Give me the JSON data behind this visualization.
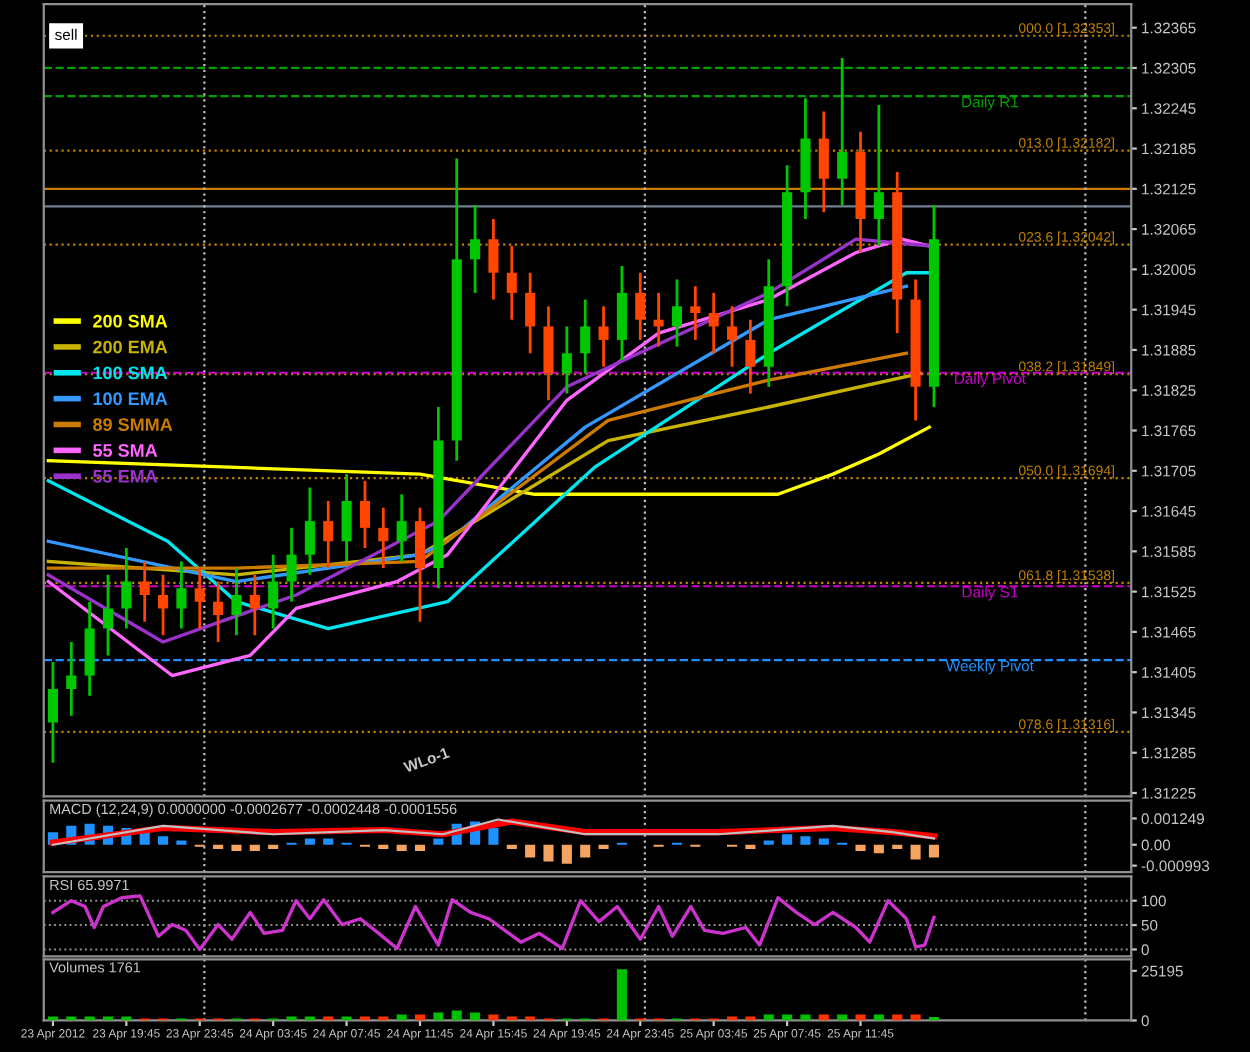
{
  "chart_data": [
    {
      "type": "candlestick",
      "x": [
        "2012-04-23T15:45",
        "2012-04-23T16:45",
        "2012-04-23T17:45",
        "2012-04-23T18:45",
        "2012-04-23T19:45",
        "2012-04-23T20:45",
        "2012-04-23T21:45",
        "2012-04-23T22:45",
        "2012-04-23T23:45",
        "2012-04-24T00:45",
        "2012-04-24T01:45",
        "2012-04-24T02:45",
        "2012-04-24T03:45",
        "2012-04-24T04:45",
        "2012-04-24T05:45",
        "2012-04-24T06:45",
        "2012-04-24T07:45",
        "2012-04-24T08:45",
        "2012-04-24T09:45",
        "2012-04-24T10:45",
        "2012-04-24T11:45",
        "2012-04-24T12:45",
        "2012-04-24T13:45",
        "2012-04-24T14:45",
        "2012-04-24T15:45",
        "2012-04-24T16:45",
        "2012-04-24T17:45",
        "2012-04-24T18:45",
        "2012-04-24T19:45",
        "2012-04-24T20:45",
        "2012-04-24T21:45",
        "2012-04-24T22:45",
        "2012-04-24T23:45",
        "2012-04-25T00:45",
        "2012-04-25T01:45",
        "2012-04-25T02:45",
        "2012-04-25T03:45",
        "2012-04-25T04:45",
        "2012-04-25T05:45",
        "2012-04-25T06:45",
        "2012-04-25T07:45",
        "2012-04-25T08:45",
        "2012-04-25T09:45",
        "2012-04-25T10:45",
        "2012-04-25T11:45",
        "2012-04-25T12:45",
        "2012-04-25T13:45",
        "2012-04-25T14:45",
        "2012-04-25T15:45"
      ],
      "ohlc": [
        [
          1.3133,
          1.3142,
          1.3127,
          1.3138
        ],
        [
          1.3138,
          1.3145,
          1.3134,
          1.314
        ],
        [
          1.314,
          1.3151,
          1.3137,
          1.3147
        ],
        [
          1.3147,
          1.3155,
          1.3143,
          1.315
        ],
        [
          1.315,
          1.3159,
          1.3147,
          1.3154
        ],
        [
          1.3154,
          1.3157,
          1.3148,
          1.3152
        ],
        [
          1.3152,
          1.3155,
          1.3146,
          1.315
        ],
        [
          1.315,
          1.3157,
          1.3147,
          1.3153
        ],
        [
          1.3153,
          1.3156,
          1.3147,
          1.3151
        ],
        [
          1.3151,
          1.3154,
          1.3145,
          1.3149
        ],
        [
          1.3149,
          1.3156,
          1.3146,
          1.3152
        ],
        [
          1.3152,
          1.3155,
          1.3146,
          1.315
        ],
        [
          1.315,
          1.3158,
          1.3147,
          1.3154
        ],
        [
          1.3154,
          1.3162,
          1.3151,
          1.3158
        ],
        [
          1.3158,
          1.3168,
          1.3155,
          1.3163
        ],
        [
          1.3163,
          1.3166,
          1.3156,
          1.316
        ],
        [
          1.316,
          1.317,
          1.3157,
          1.3166
        ],
        [
          1.3166,
          1.3169,
          1.3159,
          1.3162
        ],
        [
          1.3162,
          1.3165,
          1.3156,
          1.316
        ],
        [
          1.316,
          1.3167,
          1.3157,
          1.3163
        ],
        [
          1.3163,
          1.3165,
          1.3148,
          1.3156
        ],
        [
          1.3156,
          1.318,
          1.3153,
          1.3175
        ],
        [
          1.3175,
          1.3217,
          1.3172,
          1.3202
        ],
        [
          1.3202,
          1.321,
          1.3197,
          1.3205
        ],
        [
          1.3205,
          1.3208,
          1.3196,
          1.32
        ],
        [
          1.32,
          1.3204,
          1.3193,
          1.3197
        ],
        [
          1.3197,
          1.32,
          1.3188,
          1.3192
        ],
        [
          1.3192,
          1.3195,
          1.3181,
          1.3185
        ],
        [
          1.3185,
          1.3192,
          1.3182,
          1.3188
        ],
        [
          1.3188,
          1.3196,
          1.3185,
          1.3192
        ],
        [
          1.3192,
          1.3195,
          1.3186,
          1.319
        ],
        [
          1.319,
          1.3201,
          1.3187,
          1.3197
        ],
        [
          1.3197,
          1.32,
          1.319,
          1.3193
        ],
        [
          1.3193,
          1.3197,
          1.3189,
          1.3192
        ],
        [
          1.3192,
          1.3199,
          1.3189,
          1.3195
        ],
        [
          1.3195,
          1.3198,
          1.319,
          1.3194
        ],
        [
          1.3194,
          1.3197,
          1.3188,
          1.3192
        ],
        [
          1.3192,
          1.3195,
          1.3186,
          1.319
        ],
        [
          1.319,
          1.3193,
          1.3182,
          1.3186
        ],
        [
          1.3186,
          1.3202,
          1.3183,
          1.3198
        ],
        [
          1.3198,
          1.3216,
          1.3195,
          1.3212
        ],
        [
          1.3212,
          1.3226,
          1.3208,
          1.322
        ],
        [
          1.322,
          1.3224,
          1.3209,
          1.3214
        ],
        [
          1.3214,
          1.3232,
          1.321,
          1.3218
        ],
        [
          1.3218,
          1.3221,
          1.3203,
          1.3208
        ],
        [
          1.3208,
          1.3225,
          1.3204,
          1.3212
        ],
        [
          1.3212,
          1.3215,
          1.3191,
          1.3196
        ],
        [
          1.3196,
          1.3199,
          1.3178,
          1.3183
        ],
        [
          1.3183,
          1.321,
          1.318,
          1.3205
        ]
      ],
      "series": [
        {
          "type": "line",
          "name": "200 SMA",
          "color": "#ffff00",
          "x": [
            "2012-04-23T15:30",
            "2012-04-24T01:45",
            "2012-04-24T11:45",
            "2012-04-24T18:00",
            "2012-04-25T01:00",
            "2012-04-25T07:15",
            "2012-04-25T10:15",
            "2012-04-25T12:45",
            "2012-04-25T15:30"
          ],
          "values": [
            1.3172,
            1.3171,
            1.317,
            1.3167,
            1.3167,
            1.3167,
            1.317,
            1.3173,
            1.3177
          ]
        },
        {
          "type": "line",
          "name": "200 EMA",
          "color": "#c8b400",
          "x": [
            "2012-04-23T15:30",
            "2012-04-24T01:45",
            "2012-04-24T11:45",
            "2012-04-24T22:00",
            "2012-04-25T06:45",
            "2012-04-25T15:00"
          ],
          "values": [
            1.3157,
            1.3155,
            1.3158,
            1.3175,
            1.318,
            1.3185
          ]
        },
        {
          "type": "line",
          "name": "100 SMA",
          "color": "#00e5ee",
          "x": [
            "2012-04-23T15:30",
            "2012-04-23T22:00",
            "2012-04-24T01:45",
            "2012-04-24T06:45",
            "2012-04-24T13:15",
            "2012-04-24T21:15",
            "2012-04-25T06:45",
            "2012-04-25T14:15",
            "2012-04-25T15:30"
          ],
          "values": [
            1.3169,
            1.316,
            1.3151,
            1.3147,
            1.3151,
            1.3171,
            1.3188,
            1.32,
            1.32
          ]
        },
        {
          "type": "line",
          "name": "100 EMA",
          "color": "#3399ff",
          "x": [
            "2012-04-23T15:30",
            "2012-04-24T01:45",
            "2012-04-24T11:45",
            "2012-04-24T13:15",
            "2012-04-24T20:45",
            "2012-04-25T06:45",
            "2012-04-25T14:15"
          ],
          "values": [
            1.316,
            1.3154,
            1.3158,
            1.316,
            1.3177,
            1.3193,
            1.3198
          ]
        },
        {
          "type": "line",
          "name": "89 SMMA",
          "color": "#cc7a00",
          "x": [
            "2012-04-23T15:30",
            "2012-04-24T01:45",
            "2012-04-24T11:45",
            "2012-04-24T22:00",
            "2012-04-25T06:45",
            "2012-04-25T14:15"
          ],
          "values": [
            1.3156,
            1.3156,
            1.3157,
            1.3178,
            1.3184,
            1.3188
          ]
        },
        {
          "type": "line",
          "name": "55 SMA",
          "color": "#ff66ff",
          "x": [
            "2012-04-23T15:30",
            "2012-04-23T22:15",
            "2012-04-24T02:30",
            "2012-04-24T05:00",
            "2012-04-24T10:30",
            "2012-04-24T13:15",
            "2012-04-24T19:45",
            "2012-04-25T00:45",
            "2012-04-25T06:45",
            "2012-04-25T11:30",
            "2012-04-25T14:00",
            "2012-04-25T15:30"
          ],
          "values": [
            1.3154,
            1.314,
            1.3143,
            1.315,
            1.3154,
            1.3158,
            1.3181,
            1.3191,
            1.3196,
            1.3203,
            1.3205,
            1.3204
          ]
        },
        {
          "type": "line",
          "name": "55 EMA",
          "color": "#9933cc",
          "x": [
            "2012-04-23T15:30",
            "2012-04-23T21:45",
            "2012-04-24T05:00",
            "2012-04-24T12:45",
            "2012-04-24T19:45",
            "2012-04-25T06:45",
            "2012-04-25T11:30",
            "2012-04-25T15:30"
          ],
          "values": [
            1.3155,
            1.3145,
            1.3152,
            1.3163,
            1.3183,
            1.3197,
            1.3205,
            1.3204
          ]
        }
      ],
      "ref_lines": [
        {
          "axis": "y",
          "value": 1.32353,
          "label": "000.0 [1.32353]",
          "color": "#c08000",
          "line_style": "dotted"
        },
        {
          "axis": "y",
          "value": 1.32182,
          "label": "013.0 [1.32182]",
          "color": "#c08000",
          "line_style": "dotted"
        },
        {
          "axis": "y",
          "value": 1.32042,
          "label": "023.6 [1.32042]",
          "color": "#c08000",
          "line_style": "dotted"
        },
        {
          "axis": "y",
          "value": 1.31849,
          "label": "038.2 [1.31849]",
          "color": "#c08000",
          "line_style": "dotted"
        },
        {
          "axis": "y",
          "value": 1.31694,
          "label": "050.0 [1.31694]",
          "color": "#c08000",
          "line_style": "dotted"
        },
        {
          "axis": "y",
          "value": 1.31538,
          "label": "061.8 [1.31538]",
          "color": "#c08000",
          "line_style": "dotted"
        },
        {
          "axis": "y",
          "value": 1.31316,
          "label": "078.6 [1.31316]",
          "color": "#c08000",
          "line_style": "dotted"
        },
        {
          "axis": "y",
          "value": 1.32305,
          "color": "#00a000",
          "line_style": "dashed"
        },
        {
          "axis": "y",
          "value": 1.32263,
          "label": "Daily R1",
          "color": "#00a000",
          "line_style": "dashed"
        },
        {
          "axis": "y",
          "value": 1.32125,
          "color": "#cc7a00",
          "line_style": "solid"
        },
        {
          "axis": "y",
          "value": 1.32099,
          "color": "#708090",
          "line_style": "solid"
        },
        {
          "axis": "y",
          "value": 1.31851,
          "label": "Daily Pivot",
          "color": "#cc00cc",
          "line_style": "dashed"
        },
        {
          "axis": "y",
          "value": 1.31533,
          "label": "Daily S1",
          "color": "#cc00cc",
          "line_style": "dashed"
        },
        {
          "axis": "y",
          "value": 1.31423,
          "label": "Weekly Pivot",
          "color": "#1e90ff",
          "line_style": "dashed"
        },
        {
          "axis": "x",
          "value": "2012-04-24",
          "color": "#c0c0c0",
          "line_style": "dotted"
        },
        {
          "axis": "x",
          "value": "2012-04-25",
          "color": "#c0c0c0",
          "line_style": "dotted"
        },
        {
          "axis": "x",
          "value": "2012-04-26",
          "color": "#c0c0c0",
          "line_style": "dotted"
        }
      ],
      "annotations": [
        "sell",
        "WLo-1"
      ],
      "legend": "center left",
      "xlim": [
        "2012-04-23T15:15",
        "2012-04-26T02:30"
      ],
      "ylim": [
        1.3122,
        1.324
      ],
      "yticks": [
        1.32365,
        1.32305,
        1.32245,
        1.32185,
        1.32125,
        1.32065,
        1.32005,
        1.31945,
        1.31885,
        1.31825,
        1.31765,
        1.31705,
        1.31645,
        1.31585,
        1.31525,
        1.31465,
        1.31405,
        1.31345,
        1.31285,
        1.31225
      ],
      "tick_labels": "y"
    },
    {
      "type": "bar",
      "title": "MACD (12,24,9) 0.0000000 -0.0002677 -0.0002448 -0.0001556",
      "x": [
        "2012-04-23T15:45",
        "2012-04-23T16:45",
        "2012-04-23T17:45",
        "2012-04-23T18:45",
        "2012-04-23T19:45",
        "2012-04-23T20:45",
        "2012-04-23T21:45",
        "2012-04-23T22:45",
        "2012-04-23T23:45",
        "2012-04-24T00:45",
        "2012-04-24T01:45",
        "2012-04-24T02:45",
        "2012-04-24T03:45",
        "2012-04-24T04:45",
        "2012-04-24T05:45",
        "2012-04-24T06:45",
        "2012-04-24T07:45",
        "2012-04-24T08:45",
        "2012-04-24T09:45",
        "2012-04-24T10:45",
        "2012-04-24T11:45",
        "2012-04-24T12:45",
        "2012-04-24T13:45",
        "2012-04-24T14:45",
        "2012-04-24T15:45",
        "2012-04-24T16:45",
        "2012-04-24T17:45",
        "2012-04-24T18:45",
        "2012-04-24T19:45",
        "2012-04-24T20:45",
        "2012-04-24T21:45",
        "2012-04-24T22:45",
        "2012-04-24T23:45",
        "2012-04-25T00:45",
        "2012-04-25T01:45",
        "2012-04-25T02:45",
        "2012-04-25T03:45",
        "2012-04-25T04:45",
        "2012-04-25T05:45",
        "2012-04-25T06:45",
        "2012-04-25T07:45",
        "2012-04-25T08:45",
        "2012-04-25T09:45",
        "2012-04-25T10:45",
        "2012-04-25T11:45",
        "2012-04-25T12:45",
        "2012-04-25T13:45",
        "2012-04-25T14:45",
        "2012-04-25T15:45"
      ],
      "series": [
        {
          "type": "bar",
          "values": [
            0.0006,
            0.0009,
            0.001,
            0.0009,
            0.0008,
            0.0006,
            0.0004,
            0.0002,
            -0.0001,
            -0.0002,
            -0.0003,
            -0.0003,
            -0.0002,
            0.0001,
            0.0003,
            0.0003,
            0.0001,
            -0.0001,
            -0.0002,
            -0.0003,
            -0.0003,
            0.0003,
            0.001,
            0.0011,
            0.0008,
            -0.0002,
            -0.0006,
            -0.0008,
            -0.0009,
            -0.0006,
            -0.0002,
            0.0001,
            0.0,
            -0.0001,
            0.0001,
            -0.0001,
            0.0,
            -0.0001,
            -0.0002,
            0.0002,
            0.0005,
            0.0004,
            0.0003,
            0.0001,
            -0.0003,
            -0.0004,
            -0.0002,
            -0.0007,
            -0.0006
          ],
          "colors": [
            "#1e90ff",
            "#1e90ff",
            "#1e90ff",
            "#1e90ff",
            "#1e90ff",
            "#1e90ff",
            "#1e90ff",
            "#1e90ff",
            "#f4a460",
            "#f4a460",
            "#f4a460",
            "#f4a460",
            "#f4a460",
            "#1e90ff",
            "#1e90ff",
            "#1e90ff",
            "#1e90ff",
            "#f4a460",
            "#f4a460",
            "#f4a460",
            "#f4a460",
            "#1e90ff",
            "#1e90ff",
            "#1e90ff",
            "#1e90ff",
            "#f4a460",
            "#f4a460",
            "#f4a460",
            "#f4a460",
            "#f4a460",
            "#f4a460",
            "#1e90ff",
            "#1e90ff",
            "#f4a460",
            "#1e90ff",
            "#f4a460",
            "#1e90ff",
            "#f4a460",
            "#f4a460",
            "#1e90ff",
            "#1e90ff",
            "#1e90ff",
            "#1e90ff",
            "#1e90ff",
            "#f4a460",
            "#f4a460",
            "#f4a460",
            "#f4a460",
            "#f4a460"
          ]
        },
        {
          "type": "line",
          "color": "#c0c0c0",
          "x": [
            "2012-04-23T15:45",
            "2012-04-23T21:45",
            "2012-04-24T03:45",
            "2012-04-24T09:45",
            "2012-04-24T13:00",
            "2012-04-24T16:00",
            "2012-04-24T20:45",
            "2012-04-25T04:00",
            "2012-04-25T10:15",
            "2012-04-25T13:30",
            "2012-04-25T15:45"
          ],
          "values": [
            0.0,
            0.0009,
            0.0005,
            0.0007,
            0.0005,
            0.0012,
            0.0005,
            0.0005,
            0.0009,
            0.0006,
            0.0003
          ]
        },
        {
          "type": "line",
          "color": "#ff0000",
          "x": [
            "2012-04-23T15:45",
            "2012-04-23T21:45",
            "2012-04-24T03:45",
            "2012-04-24T09:45",
            "2012-04-24T13:00",
            "2012-04-24T16:45",
            "2012-04-24T20:45",
            "2012-04-25T04:00",
            "2012-04-25T10:15",
            "2012-04-25T13:30",
            "2012-04-25T15:45"
          ],
          "values": [
            0.0001,
            0.0008,
            0.0006,
            0.0007,
            0.0005,
            0.0011,
            0.0006,
            0.0006,
            0.0008,
            0.0006,
            0.0004
          ]
        }
      ],
      "ref_lines": [
        {
          "axis": "x",
          "value": "2012-04-24",
          "color": "#c0c0c0",
          "line_style": "dotted"
        },
        {
          "axis": "x",
          "value": "2012-04-25",
          "color": "#c0c0c0",
          "line_style": "dotted"
        },
        {
          "axis": "x",
          "value": "2012-04-26",
          "color": "#c0c0c0",
          "line_style": "dotted"
        }
      ],
      "xlim": [
        "2012-04-23T15:15",
        "2012-04-26T02:30"
      ],
      "ylim": [
        -0.0013,
        0.0021
      ],
      "yticks": [
        {
          "value": 0.001249,
          "label": "0.001249"
        },
        {
          "value": 0,
          "label": "0.00"
        },
        {
          "value": -0.000993,
          "label": "-0.000993"
        }
      ],
      "tick_labels": "y"
    },
    {
      "type": "line",
      "title": "RSI 65.9971",
      "series": [
        {
          "color": "#cc33cc",
          "x": [
            "2012-04-23T15:45",
            "2012-04-23T16:45",
            "2012-04-23T17:30",
            "2012-04-23T18:00",
            "2012-04-23T18:30",
            "2012-04-23T19:30",
            "2012-04-23T20:30",
            "2012-04-23T21:30",
            "2012-04-23T22:15",
            "2012-04-23T23:00",
            "2012-04-23T23:45",
            "2012-04-24T00:45",
            "2012-04-24T01:30",
            "2012-04-24T02:30",
            "2012-04-24T03:15",
            "2012-04-24T04:15",
            "2012-04-24T05:00",
            "2012-04-24T05:45",
            "2012-04-24T06:30",
            "2012-04-24T07:30",
            "2012-04-24T08:30",
            "2012-04-24T09:30",
            "2012-04-24T10:30",
            "2012-04-24T11:30",
            "2012-04-24T12:45",
            "2012-04-24T13:30",
            "2012-04-24T14:30",
            "2012-04-24T15:30",
            "2012-04-24T17:15",
            "2012-04-24T18:15",
            "2012-04-24T19:30",
            "2012-04-24T20:30",
            "2012-04-24T21:30",
            "2012-04-24T22:30",
            "2012-04-24T23:45",
            "2012-04-25T00:45",
            "2012-04-25T01:30",
            "2012-04-25T02:30",
            "2012-04-25T03:15",
            "2012-04-25T04:15",
            "2012-04-25T05:30",
            "2012-04-25T06:15",
            "2012-04-25T07:15",
            "2012-04-25T08:15",
            "2012-04-25T09:15",
            "2012-04-25T10:15",
            "2012-04-25T11:30",
            "2012-04-25T12:15",
            "2012-04-25T13:15",
            "2012-04-25T14:15",
            "2012-04-25T14:45",
            "2012-04-25T15:15",
            "2012-04-25T15:45"
          ],
          "values": [
            76,
            100,
            88,
            45,
            88,
            106,
            110,
            27,
            51,
            39,
            0,
            51,
            21,
            76,
            33,
            39,
            100,
            63,
            102,
            51,
            63,
            33,
            2,
            88,
            9,
            102,
            76,
            63,
            15,
            33,
            2,
            100,
            57,
            88,
            21,
            88,
            27,
            88,
            39,
            33,
            45,
            9,
            106,
            76,
            51,
            76,
            45,
            15,
            100,
            63,
            5,
            9,
            66
          ]
        }
      ],
      "ref_lines": [
        {
          "axis": "x",
          "value": "2012-04-24",
          "color": "#c0c0c0",
          "line_style": "dotted"
        },
        {
          "axis": "x",
          "value": "2012-04-25",
          "color": "#c0c0c0",
          "line_style": "dotted"
        },
        {
          "axis": "x",
          "value": "2012-04-26",
          "color": "#c0c0c0",
          "line_style": "dotted"
        }
      ],
      "xlim": [
        "2012-04-23T15:15",
        "2012-04-26T02:30"
      ],
      "ylim": [
        -14,
        150
      ],
      "yticks": [
        100,
        50,
        0
      ],
      "grid": "y",
      "tick_labels": "y"
    },
    {
      "type": "bar",
      "title": "Volumes 1761",
      "x": [
        "2012-04-23T15:45",
        "2012-04-23T16:45",
        "2012-04-23T17:45",
        "2012-04-23T18:45",
        "2012-04-23T19:45",
        "2012-04-23T20:45",
        "2012-04-23T21:45",
        "2012-04-23T22:45",
        "2012-04-23T23:45",
        "2012-04-24T00:45",
        "2012-04-24T01:45",
        "2012-04-24T02:45",
        "2012-04-24T03:45",
        "2012-04-24T04:45",
        "2012-04-24T05:45",
        "2012-04-24T06:45",
        "2012-04-24T07:45",
        "2012-04-24T08:45",
        "2012-04-24T09:45",
        "2012-04-24T10:45",
        "2012-04-24T11:45",
        "2012-04-24T12:45",
        "2012-04-24T13:45",
        "2012-04-24T14:45",
        "2012-04-24T15:45",
        "2012-04-24T16:45",
        "2012-04-24T17:45",
        "2012-04-24T18:45",
        "2012-04-24T19:45",
        "2012-04-24T20:45",
        "2012-04-24T21:45",
        "2012-04-24T22:45",
        "2012-04-24T23:45",
        "2012-04-25T00:45",
        "2012-04-25T01:45",
        "2012-04-25T02:45",
        "2012-04-25T03:45",
        "2012-04-25T04:45",
        "2012-04-25T05:45",
        "2012-04-25T06:45",
        "2012-04-25T07:45",
        "2012-04-25T08:45",
        "2012-04-25T09:45",
        "2012-04-25T10:45",
        "2012-04-25T11:45",
        "2012-04-25T12:45",
        "2012-04-25T13:45",
        "2012-04-25T14:45",
        "2012-04-25T15:45"
      ],
      "values": [
        2000,
        2000,
        2000,
        2000,
        2000,
        1000,
        1000,
        1000,
        1000,
        1000,
        1000,
        1000,
        1000,
        2000,
        2000,
        2000,
        2000,
        2000,
        2000,
        3000,
        3000,
        4000,
        5000,
        4000,
        3000,
        2000,
        2000,
        1000,
        1000,
        1000,
        1000,
        26000,
        1000,
        1000,
        1000,
        1000,
        1000,
        2000,
        2000,
        3000,
        3000,
        3000,
        3000,
        3000,
        3000,
        3000,
        3000,
        3000,
        1761
      ],
      "colors": [
        "#00c000",
        "#00c000",
        "#00c000",
        "#00c000",
        "#00c000",
        "#ff3300",
        "#ff3300",
        "#00c000",
        "#ff3300",
        "#ff3300",
        "#00c000",
        "#ff3300",
        "#00c000",
        "#00c000",
        "#00c000",
        "#ff3300",
        "#00c000",
        "#ff3300",
        "#ff3300",
        "#00c000",
        "#ff3300",
        "#00c000",
        "#00c000",
        "#00c000",
        "#ff3300",
        "#ff3300",
        "#ff3300",
        "#ff3300",
        "#00c000",
        "#00c000",
        "#ff3300",
        "#00c000",
        "#ff3300",
        "#ff3300",
        "#00c000",
        "#ff3300",
        "#ff3300",
        "#ff3300",
        "#ff3300",
        "#00c000",
        "#00c000",
        "#00c000",
        "#ff3300",
        "#00c000",
        "#ff3300",
        "#00c000",
        "#ff3300",
        "#ff3300",
        "#00c000"
      ],
      "ref_lines": [
        {
          "axis": "x",
          "value": "2012-04-24",
          "color": "#c0c0c0",
          "line_style": "dotted"
        },
        {
          "axis": "x",
          "value": "2012-04-25",
          "color": "#c0c0c0",
          "line_style": "dotted"
        },
        {
          "axis": "x",
          "value": "2012-04-26",
          "color": "#c0c0c0",
          "line_style": "dotted"
        }
      ],
      "xlim": [
        "2012-04-23T15:15",
        "2012-04-26T02:30"
      ],
      "xticks": [
        {
          "value": "2012-04-23T15:45",
          "label": "23 Apr 2012"
        },
        {
          "value": "2012-04-23T19:45",
          "label": "23 Apr 19:45"
        },
        {
          "value": "2012-04-23T23:45",
          "label": "23 Apr 23:45"
        },
        {
          "value": "2012-04-24T03:45",
          "label": "24 Apr 03:45"
        },
        {
          "value": "2012-04-24T07:45",
          "label": "24 Apr 07:45"
        },
        {
          "value": "2012-04-24T11:45",
          "label": "24 Apr 11:45"
        },
        {
          "value": "2012-04-24T15:45",
          "label": "24 Apr 15:45"
        },
        {
          "value": "2012-04-24T19:45",
          "label": "24 Apr 19:45"
        },
        {
          "value": "2012-04-24T23:45",
          "label": "24 Apr 23:45"
        },
        {
          "value": "2012-04-25T03:45",
          "label": "25 Apr 03:45"
        },
        {
          "value": "2012-04-25T07:45",
          "label": "25 Apr 07:45"
        },
        {
          "value": "2012-04-25T11:45",
          "label": "25 Apr 11:45"
        }
      ],
      "ylim": [
        0,
        31000
      ],
      "yticks": [
        25195,
        0
      ]
    }
  ]
}
